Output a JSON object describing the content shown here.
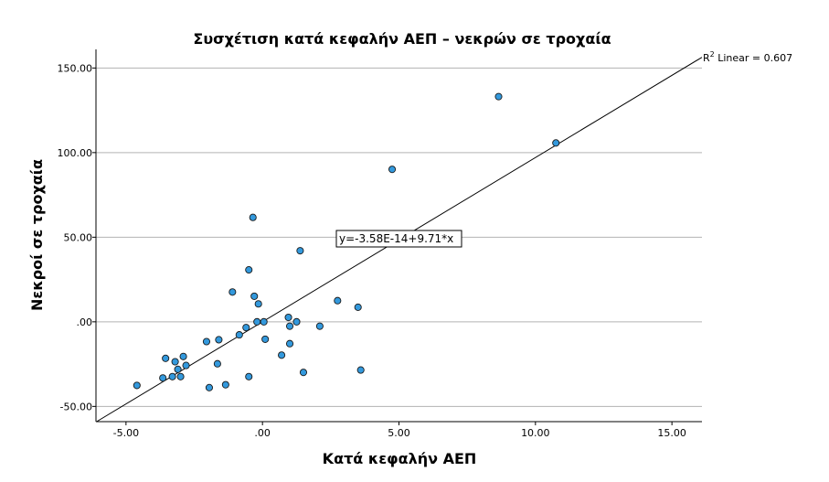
{
  "chart_data": {
    "type": "scatter",
    "title": "Συσχέτιση κατά κεφαλήν ΑΕΠ – νεκρών σε τροχαία",
    "xlabel": "Κατά κεφαλήν ΑΕΠ",
    "ylabel": "Νεκροί σε τροχαία",
    "xlim": [
      -6.1,
      16.1
    ],
    "ylim": [
      -59,
      161
    ],
    "x_ticks": [
      -5,
      0,
      5,
      10,
      15
    ],
    "x_tick_labels": [
      "-5.00",
      ".00",
      "5.00",
      "10.00",
      "15.00"
    ],
    "y_ticks": [
      -50,
      0,
      50,
      100,
      150
    ],
    "y_tick_labels": [
      "-50.00",
      ".00",
      "50.00",
      "100.00",
      "150.00"
    ],
    "grid": "horizontal",
    "point_color": "#3399dd",
    "fit_line": {
      "intercept": 0,
      "slope": 9.71
    },
    "r_squared_label": {
      "r": "R",
      "sup": "2",
      "text": " Linear = 0.607"
    },
    "equation_label": "y=-3.58E-14+9.71*x",
    "points": [
      {
        "x": -4.6,
        "y": -37.6
      },
      {
        "x": -3.65,
        "y": -33.2
      },
      {
        "x": -3.55,
        "y": -21.6
      },
      {
        "x": -3.3,
        "y": -32.4
      },
      {
        "x": -3.2,
        "y": -23.6
      },
      {
        "x": -3.1,
        "y": -28.1
      },
      {
        "x": -3.0,
        "y": -32.4
      },
      {
        "x": -2.9,
        "y": -20.5
      },
      {
        "x": -2.8,
        "y": -25.8
      },
      {
        "x": -2.05,
        "y": -11.7
      },
      {
        "x": -1.95,
        "y": -38.9
      },
      {
        "x": -1.6,
        "y": -10.6
      },
      {
        "x": -1.65,
        "y": -24.8
      },
      {
        "x": -1.35,
        "y": -37.2
      },
      {
        "x": -1.1,
        "y": 17.6
      },
      {
        "x": -0.85,
        "y": -7.7
      },
      {
        "x": -0.6,
        "y": -3.4
      },
      {
        "x": -0.5,
        "y": 30.7
      },
      {
        "x": -0.5,
        "y": -32.4
      },
      {
        "x": -0.35,
        "y": 61.7
      },
      {
        "x": -0.3,
        "y": 15.1
      },
      {
        "x": -0.2,
        "y": 0.0
      },
      {
        "x": -0.15,
        "y": 10.6
      },
      {
        "x": 0.05,
        "y": 0.0
      },
      {
        "x": 0.1,
        "y": -10.3
      },
      {
        "x": 0.7,
        "y": -19.7
      },
      {
        "x": 0.95,
        "y": 2.6
      },
      {
        "x": 1.0,
        "y": -12.9
      },
      {
        "x": 1.0,
        "y": -2.6
      },
      {
        "x": 1.25,
        "y": 0.0
      },
      {
        "x": 1.38,
        "y": 42.0
      },
      {
        "x": 1.5,
        "y": -29.9
      },
      {
        "x": 2.1,
        "y": -2.6
      },
      {
        "x": 2.75,
        "y": 12.5
      },
      {
        "x": 3.5,
        "y": 8.6
      },
      {
        "x": 3.6,
        "y": -28.5
      },
      {
        "x": 4.75,
        "y": 90.1
      },
      {
        "x": 8.65,
        "y": 133.1
      },
      {
        "x": 10.75,
        "y": 105.7
      }
    ]
  }
}
